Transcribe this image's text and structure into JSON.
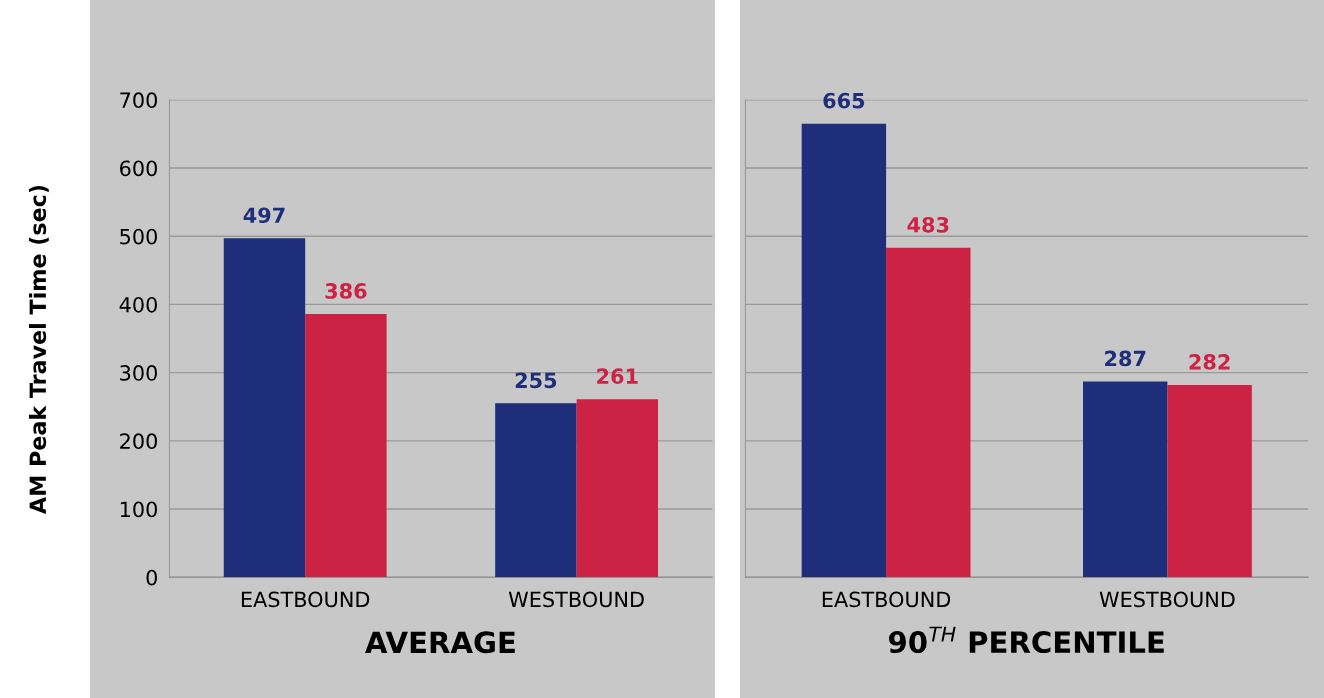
{
  "chart_data": [
    {
      "type": "bar",
      "xlabel": "AVERAGE",
      "ylabel": "AM Peak Travel Time (sec)",
      "categories": [
        "EASTBOUND",
        "WESTBOUND"
      ],
      "series": [
        {
          "color": "#1f2e7a",
          "values": [
            497,
            255
          ]
        },
        {
          "color": "#cc2244",
          "values": [
            386,
            261
          ]
        }
      ],
      "ylim": [
        0,
        700
      ],
      "yticks": [
        0,
        100,
        200,
        300,
        400,
        500,
        600,
        700
      ],
      "grid": "y",
      "data_labels": true,
      "legend": false
    },
    {
      "type": "bar",
      "xlabel": "90$^{TH}$ PERCENTILE",
      "categories": [
        "EASTBOUND",
        "WESTBOUND"
      ],
      "series": [
        {
          "color": "#1f2e7a",
          "values": [
            665,
            287
          ]
        },
        {
          "color": "#cc2244",
          "values": [
            483,
            282
          ]
        }
      ],
      "ylim": [
        0,
        700
      ],
      "yticks": [
        0,
        100,
        200,
        300,
        400,
        500,
        600,
        700
      ],
      "grid": "y",
      "data_labels": true,
      "legend": false,
      "tick_labels": "x"
    }
  ]
}
